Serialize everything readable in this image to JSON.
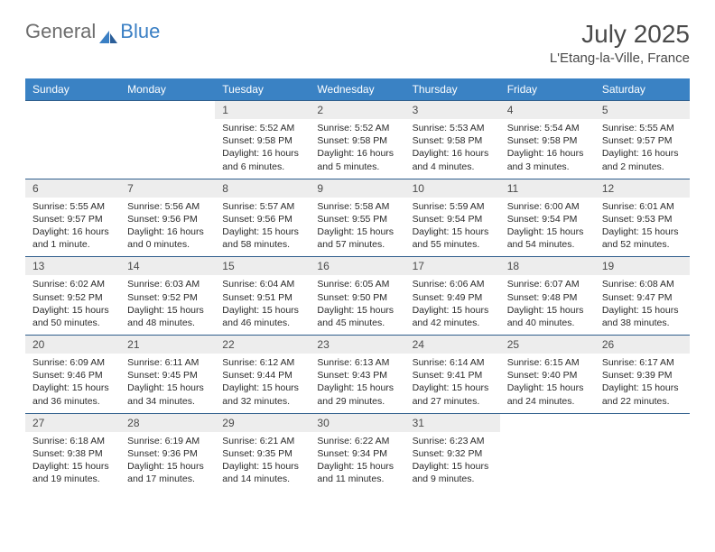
{
  "logo": {
    "text1": "General",
    "text2": "Blue"
  },
  "title": "July 2025",
  "location": "L'Etang-la-Ville, France",
  "colors": {
    "header_bg": "#3a82c4",
    "header_text": "#ffffff",
    "daynum_bg": "#ededed",
    "border": "#2f5e8c",
    "title_color": "#4a4a4a",
    "logo_gray": "#6d6d6d",
    "logo_blue": "#3a7fc4"
  },
  "weekdays": [
    "Sunday",
    "Monday",
    "Tuesday",
    "Wednesday",
    "Thursday",
    "Friday",
    "Saturday"
  ],
  "weeks": [
    [
      null,
      null,
      {
        "n": "1",
        "sr": "Sunrise: 5:52 AM",
        "ss": "Sunset: 9:58 PM",
        "dl": "Daylight: 16 hours and 6 minutes."
      },
      {
        "n": "2",
        "sr": "Sunrise: 5:52 AM",
        "ss": "Sunset: 9:58 PM",
        "dl": "Daylight: 16 hours and 5 minutes."
      },
      {
        "n": "3",
        "sr": "Sunrise: 5:53 AM",
        "ss": "Sunset: 9:58 PM",
        "dl": "Daylight: 16 hours and 4 minutes."
      },
      {
        "n": "4",
        "sr": "Sunrise: 5:54 AM",
        "ss": "Sunset: 9:58 PM",
        "dl": "Daylight: 16 hours and 3 minutes."
      },
      {
        "n": "5",
        "sr": "Sunrise: 5:55 AM",
        "ss": "Sunset: 9:57 PM",
        "dl": "Daylight: 16 hours and 2 minutes."
      }
    ],
    [
      {
        "n": "6",
        "sr": "Sunrise: 5:55 AM",
        "ss": "Sunset: 9:57 PM",
        "dl": "Daylight: 16 hours and 1 minute."
      },
      {
        "n": "7",
        "sr": "Sunrise: 5:56 AM",
        "ss": "Sunset: 9:56 PM",
        "dl": "Daylight: 16 hours and 0 minutes."
      },
      {
        "n": "8",
        "sr": "Sunrise: 5:57 AM",
        "ss": "Sunset: 9:56 PM",
        "dl": "Daylight: 15 hours and 58 minutes."
      },
      {
        "n": "9",
        "sr": "Sunrise: 5:58 AM",
        "ss": "Sunset: 9:55 PM",
        "dl": "Daylight: 15 hours and 57 minutes."
      },
      {
        "n": "10",
        "sr": "Sunrise: 5:59 AM",
        "ss": "Sunset: 9:54 PM",
        "dl": "Daylight: 15 hours and 55 minutes."
      },
      {
        "n": "11",
        "sr": "Sunrise: 6:00 AM",
        "ss": "Sunset: 9:54 PM",
        "dl": "Daylight: 15 hours and 54 minutes."
      },
      {
        "n": "12",
        "sr": "Sunrise: 6:01 AM",
        "ss": "Sunset: 9:53 PM",
        "dl": "Daylight: 15 hours and 52 minutes."
      }
    ],
    [
      {
        "n": "13",
        "sr": "Sunrise: 6:02 AM",
        "ss": "Sunset: 9:52 PM",
        "dl": "Daylight: 15 hours and 50 minutes."
      },
      {
        "n": "14",
        "sr": "Sunrise: 6:03 AM",
        "ss": "Sunset: 9:52 PM",
        "dl": "Daylight: 15 hours and 48 minutes."
      },
      {
        "n": "15",
        "sr": "Sunrise: 6:04 AM",
        "ss": "Sunset: 9:51 PM",
        "dl": "Daylight: 15 hours and 46 minutes."
      },
      {
        "n": "16",
        "sr": "Sunrise: 6:05 AM",
        "ss": "Sunset: 9:50 PM",
        "dl": "Daylight: 15 hours and 45 minutes."
      },
      {
        "n": "17",
        "sr": "Sunrise: 6:06 AM",
        "ss": "Sunset: 9:49 PM",
        "dl": "Daylight: 15 hours and 42 minutes."
      },
      {
        "n": "18",
        "sr": "Sunrise: 6:07 AM",
        "ss": "Sunset: 9:48 PM",
        "dl": "Daylight: 15 hours and 40 minutes."
      },
      {
        "n": "19",
        "sr": "Sunrise: 6:08 AM",
        "ss": "Sunset: 9:47 PM",
        "dl": "Daylight: 15 hours and 38 minutes."
      }
    ],
    [
      {
        "n": "20",
        "sr": "Sunrise: 6:09 AM",
        "ss": "Sunset: 9:46 PM",
        "dl": "Daylight: 15 hours and 36 minutes."
      },
      {
        "n": "21",
        "sr": "Sunrise: 6:11 AM",
        "ss": "Sunset: 9:45 PM",
        "dl": "Daylight: 15 hours and 34 minutes."
      },
      {
        "n": "22",
        "sr": "Sunrise: 6:12 AM",
        "ss": "Sunset: 9:44 PM",
        "dl": "Daylight: 15 hours and 32 minutes."
      },
      {
        "n": "23",
        "sr": "Sunrise: 6:13 AM",
        "ss": "Sunset: 9:43 PM",
        "dl": "Daylight: 15 hours and 29 minutes."
      },
      {
        "n": "24",
        "sr": "Sunrise: 6:14 AM",
        "ss": "Sunset: 9:41 PM",
        "dl": "Daylight: 15 hours and 27 minutes."
      },
      {
        "n": "25",
        "sr": "Sunrise: 6:15 AM",
        "ss": "Sunset: 9:40 PM",
        "dl": "Daylight: 15 hours and 24 minutes."
      },
      {
        "n": "26",
        "sr": "Sunrise: 6:17 AM",
        "ss": "Sunset: 9:39 PM",
        "dl": "Daylight: 15 hours and 22 minutes."
      }
    ],
    [
      {
        "n": "27",
        "sr": "Sunrise: 6:18 AM",
        "ss": "Sunset: 9:38 PM",
        "dl": "Daylight: 15 hours and 19 minutes."
      },
      {
        "n": "28",
        "sr": "Sunrise: 6:19 AM",
        "ss": "Sunset: 9:36 PM",
        "dl": "Daylight: 15 hours and 17 minutes."
      },
      {
        "n": "29",
        "sr": "Sunrise: 6:21 AM",
        "ss": "Sunset: 9:35 PM",
        "dl": "Daylight: 15 hours and 14 minutes."
      },
      {
        "n": "30",
        "sr": "Sunrise: 6:22 AM",
        "ss": "Sunset: 9:34 PM",
        "dl": "Daylight: 15 hours and 11 minutes."
      },
      {
        "n": "31",
        "sr": "Sunrise: 6:23 AM",
        "ss": "Sunset: 9:32 PM",
        "dl": "Daylight: 15 hours and 9 minutes."
      },
      null,
      null
    ]
  ]
}
